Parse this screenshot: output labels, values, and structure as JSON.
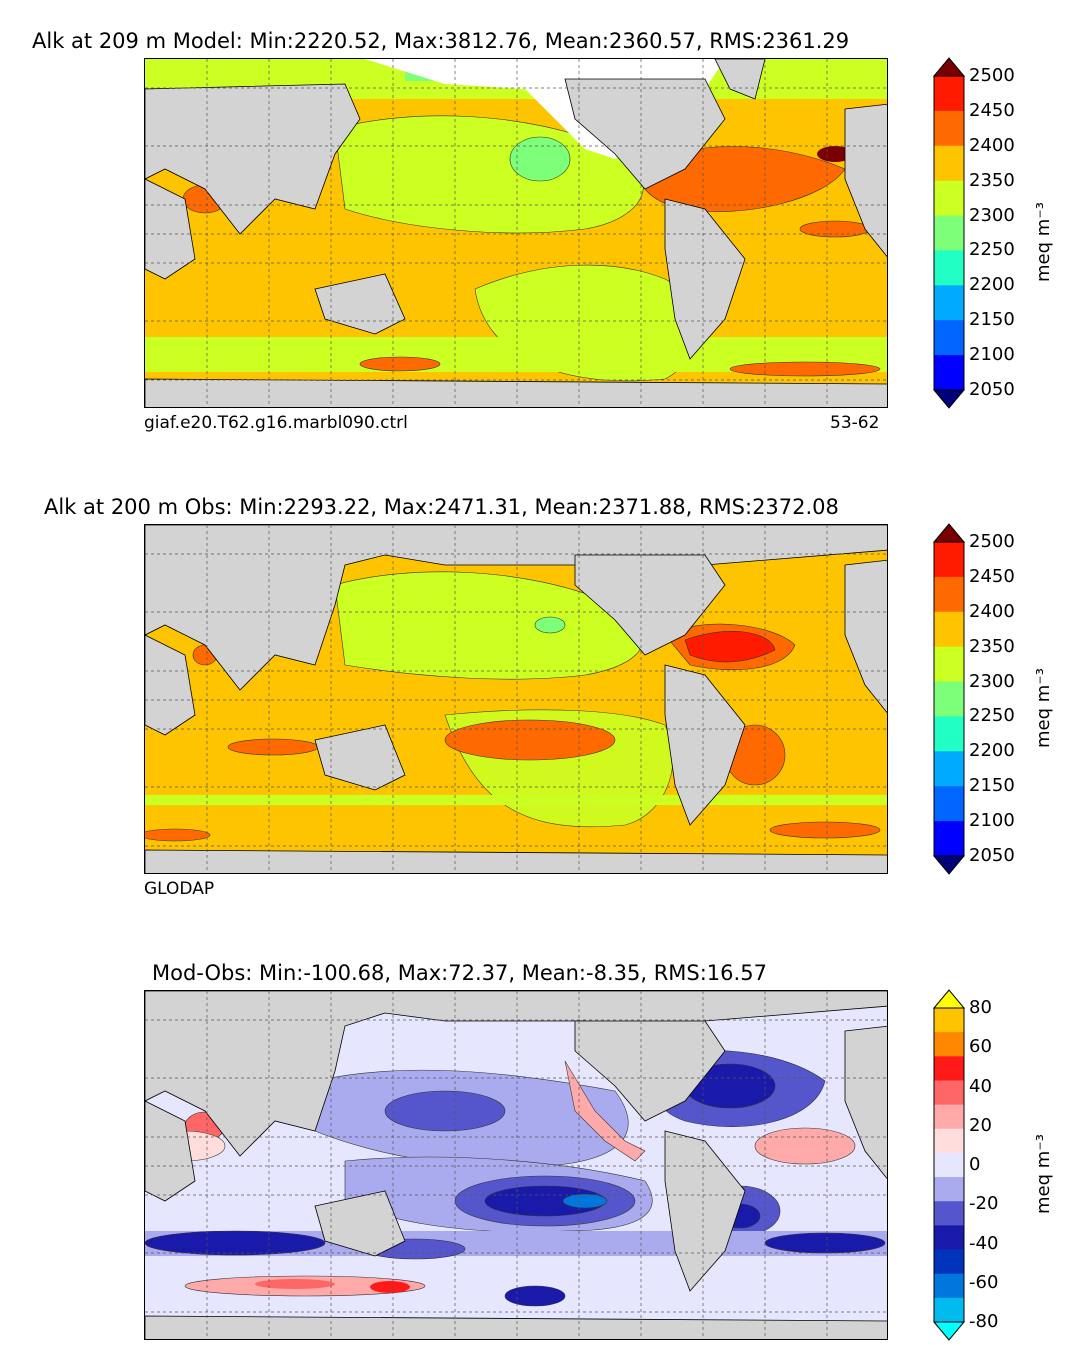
{
  "panels": [
    {
      "title": "Alk at 209 m Model: Min:2220.52, Max:3812.76, Mean:2360.57, RMS:2361.29",
      "caption_left": "giaf.e20.T62.g16.marbl090.ctrl",
      "caption_right": "53-62",
      "colorbar": {
        "unit": "meq m⁻³",
        "ticks": [
          "2500",
          "2450",
          "2400",
          "2350",
          "2300",
          "2250",
          "2200",
          "2150",
          "2100",
          "2050"
        ],
        "colors": [
          "#7a0000",
          "#ff1a00",
          "#ff6a00",
          "#ffc400",
          "#ccff22",
          "#7dff7a",
          "#22ffc4",
          "#00aaff",
          "#0066ff",
          "#0000ff",
          "#00007a"
        ]
      }
    },
    {
      "title": "Alk at 200 m Obs: Min:2293.22, Max:2471.31, Mean:2371.88, RMS:2372.08",
      "caption_left": "GLODAP",
      "caption_right": "",
      "colorbar": {
        "unit": "meq m⁻³",
        "ticks": [
          "2500",
          "2450",
          "2400",
          "2350",
          "2300",
          "2250",
          "2200",
          "2150",
          "2100",
          "2050"
        ],
        "colors": [
          "#7a0000",
          "#ff1a00",
          "#ff6a00",
          "#ffc400",
          "#ccff22",
          "#7dff7a",
          "#22ffc4",
          "#00aaff",
          "#0066ff",
          "#0000ff",
          "#00007a"
        ]
      }
    },
    {
      "title": "Mod-Obs: Min:-100.68, Max:72.37, Mean:-8.35, RMS:16.57",
      "caption_left": "",
      "caption_right": "",
      "colorbar": {
        "unit": "meq m⁻³",
        "ticks": [
          "80",
          "60",
          "40",
          "20",
          "0",
          "-20",
          "-40",
          "-60",
          "-80"
        ],
        "colors": [
          "#ffff00",
          "#ffc400",
          "#ff8800",
          "#ff1a1a",
          "#ff6666",
          "#ffaaaa",
          "#ffdddd",
          "#e6e6ff",
          "#aaaaee",
          "#5555cc",
          "#1a1aaa",
          "#0033bb",
          "#0077dd",
          "#00bbee",
          "#00ffff"
        ]
      }
    }
  ],
  "colors": {
    "land": "#d3d3d3",
    "ice": "#ffffff",
    "grid": "#555555"
  }
}
